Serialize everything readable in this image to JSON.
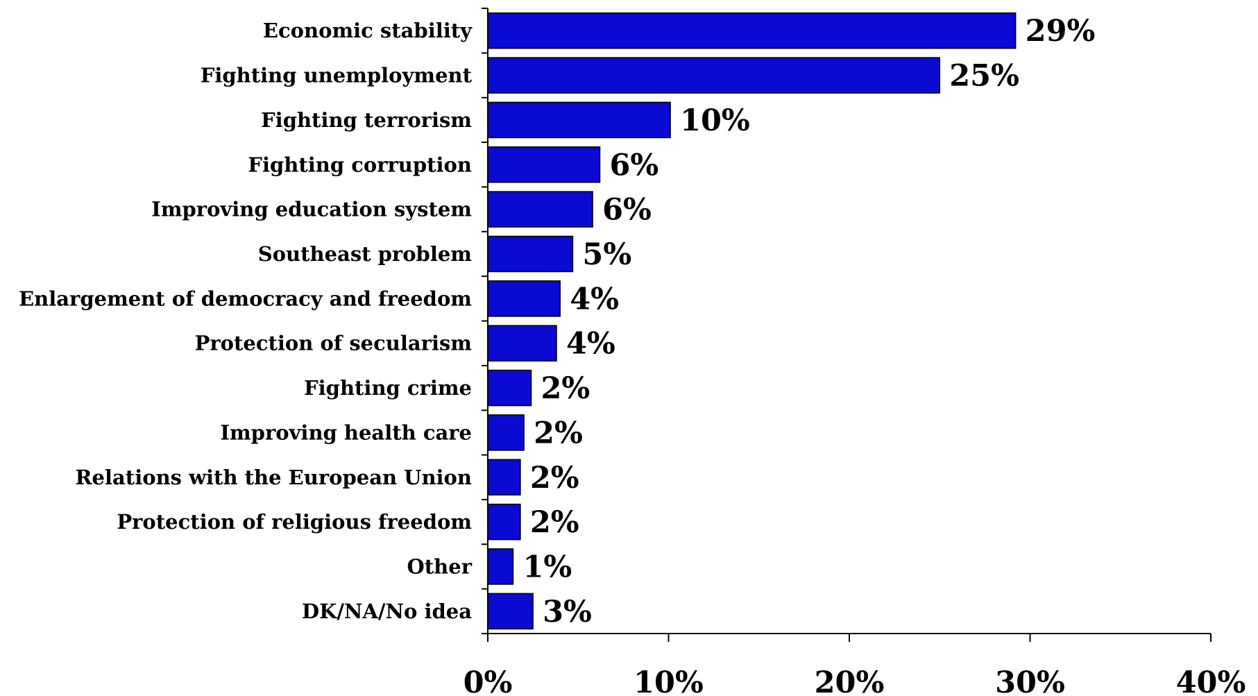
{
  "chart_data": {
    "type": "bar",
    "orientation": "horizontal",
    "categories": [
      "Economic stability",
      "Fighting unemployment",
      "Fighting terrorism",
      "Fighting corruption",
      "Improving education system",
      "Southeast problem",
      "Enlargement of democracy and freedom",
      "Protection of secularism",
      "Fighting crime",
      "Improving health care",
      "Relations with the European Union",
      "Protection of religious freedom",
      "Other",
      "DK/NA/No idea"
    ],
    "values": [
      29.2,
      25,
      10.1,
      6.2,
      5.8,
      4.7,
      4,
      3.8,
      2.4,
      2,
      1.8,
      1.8,
      1.4,
      2.5
    ],
    "value_labels": [
      "29%",
      "25%",
      "10%",
      "6%",
      "6%",
      "5%",
      "4%",
      "4%",
      "2%",
      "2%",
      "2%",
      "2%",
      "1%",
      "3%"
    ],
    "xlim": [
      0,
      40
    ],
    "xticks": [
      0,
      10,
      20,
      30,
      40
    ],
    "xtick_labels": [
      "0%",
      "10%",
      "20%",
      "30%",
      "40%"
    ],
    "bar_color": "#0a0ad2",
    "grid": false
  }
}
